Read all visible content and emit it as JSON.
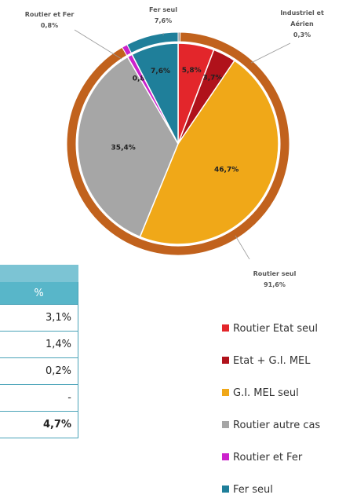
{
  "chart_data": {
    "type": "pie",
    "categories": [
      "Routier Etat seul",
      "Etat + G.I. MEL",
      "G.I. MEL seul",
      "Routier autre cas",
      "Routier et Fer",
      "Fer seul"
    ],
    "values": [
      5.8,
      3.7,
      46.7,
      35.4,
      0.8,
      7.6
    ],
    "value_labels": [
      "5,8%",
      "3,7%",
      "46,7%",
      "35,4%",
      "0,8%",
      "7,6%"
    ],
    "colors": [
      "#e3262b",
      "#b0121b",
      "#f0a818",
      "#a6a6a6",
      "#cc22cc",
      "#1f7f9a"
    ],
    "ring": {
      "categories": [
        "Industriel et Aérien",
        "Routier seul",
        "Routier et Fer",
        "Fer seul"
      ],
      "values": [
        0.3,
        91.6,
        0.8,
        7.6
      ],
      "value_labels": [
        "0,3%",
        "91,6%",
        "0,8%",
        "7,6%"
      ],
      "colors": [
        "#8c8c8c",
        "#c1621d",
        "#cc22cc",
        "#1f7f9a"
      ]
    }
  },
  "table": {
    "header": "%",
    "rows": [
      "3,1%",
      "1,4%",
      "0,2%",
      "-",
      "4,7%"
    ]
  }
}
